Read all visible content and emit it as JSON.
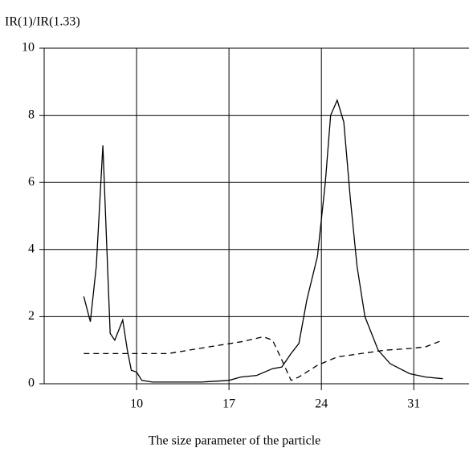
{
  "chart_data": {
    "type": "line",
    "ylabel": "IR(1)/IR(1.33)",
    "xlabel": "The size parameter  of the particle",
    "xlim": [
      3,
      35
    ],
    "ylim": [
      0,
      10
    ],
    "xticks": [
      10,
      17,
      24,
      31
    ],
    "yticks": [
      0,
      2,
      4,
      6,
      8,
      10
    ],
    "grid": true,
    "series": [
      {
        "color": "#000000",
        "dash": "solid",
        "x": [
          6,
          6.5,
          6.95,
          7.45,
          7.75,
          8,
          8.35,
          8.65,
          8.95,
          9.3,
          9.6,
          10,
          10.4,
          11.2,
          14.9,
          17,
          17.9,
          19.1,
          20.3,
          21,
          21.7,
          22.3,
          22.9,
          23.7,
          24.3,
          24.7,
          25.2,
          25.7,
          26.2,
          26.7,
          27.3,
          28.3,
          29.2,
          30.7,
          31.9,
          33.2
        ],
        "values": [
          2.6,
          1.85,
          3.5,
          7.1,
          4,
          1.5,
          1.3,
          1.6,
          1.9,
          1.0,
          0.4,
          0.35,
          0.1,
          0.05,
          0.05,
          0.1,
          0.2,
          0.25,
          0.45,
          0.5,
          0.9,
          1.2,
          2.5,
          3.8,
          6,
          8,
          8.45,
          7.8,
          5.5,
          3.5,
          2,
          1,
          0.6,
          0.3,
          0.2,
          0.15
        ]
      },
      {
        "color": "#000000",
        "dash": "dashed",
        "x": [
          6,
          12.4,
          15.5,
          17.9,
          19.6,
          20.3,
          20.9,
          21.7,
          22.3,
          23.7,
          25.2,
          27,
          28.8,
          30.7,
          31.9,
          33.2
        ],
        "values": [
          0.9,
          0.9,
          1.1,
          1.25,
          1.4,
          1.3,
          0.8,
          0.1,
          0.2,
          0.55,
          0.8,
          0.9,
          1,
          1.05,
          1.1,
          1.3
        ]
      }
    ]
  }
}
